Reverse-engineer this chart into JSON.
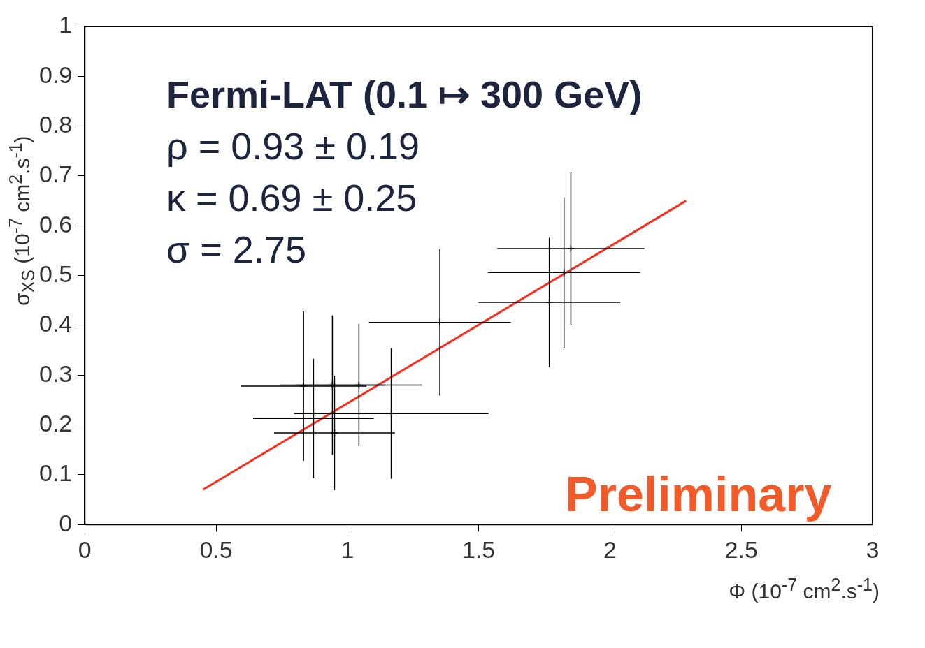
{
  "chart_data": {
    "type": "scatter",
    "xlabel": "Φ (10$^{-7}$ cm$^{2}$.s$^{-1}$)",
    "ylabel": "σ$_{XS}$ (10$^{-7}$ cm$^{2}$.s$^{-1}$)",
    "xlim": [
      0,
      3
    ],
    "xticks": [
      0,
      0.5,
      1,
      1.5,
      2,
      2.5,
      3
    ],
    "ylim": [
      0,
      1
    ],
    "yticks": [
      0,
      0.1,
      0.2,
      0.3,
      0.4,
      0.5,
      0.6,
      0.7,
      0.8,
      0.9,
      1
    ],
    "grid": false,
    "legend": false,
    "series": [
      {
        "marker": "cross",
        "color": "#000000",
        "x": [
          0.833,
          0.871,
          0.943,
          0.951,
          1.044,
          1.167,
          1.352,
          1.769,
          1.825,
          1.851
        ],
        "values": [
          0.278,
          0.213,
          0.28,
          0.184,
          0.28,
          0.223,
          0.406,
          0.446,
          0.506,
          0.554
        ],
        "errors": [
          0.15,
          0.12,
          0.14,
          0.115,
          0.123,
          0.131,
          0.147,
          0.13,
          0.151,
          0.153
        ],
        "xerrors": [
          0.24,
          0.23,
          0.2,
          0.23,
          0.24,
          0.37,
          0.27,
          0.27,
          0.29,
          0.28
        ]
      },
      {
        "type": "line",
        "color": "#ff2a1a",
        "x": [
          0.45,
          2.29
        ],
        "values": [
          0.07,
          0.65
        ]
      }
    ],
    "annotations": [
      "Fermi-LAT (0.1 ↦ 300 GeV)",
      "ρ = 0.93 ± 0.19",
      "κ = 0.69 ± 0.25",
      "σ = 2.75",
      "Preliminary"
    ]
  }
}
